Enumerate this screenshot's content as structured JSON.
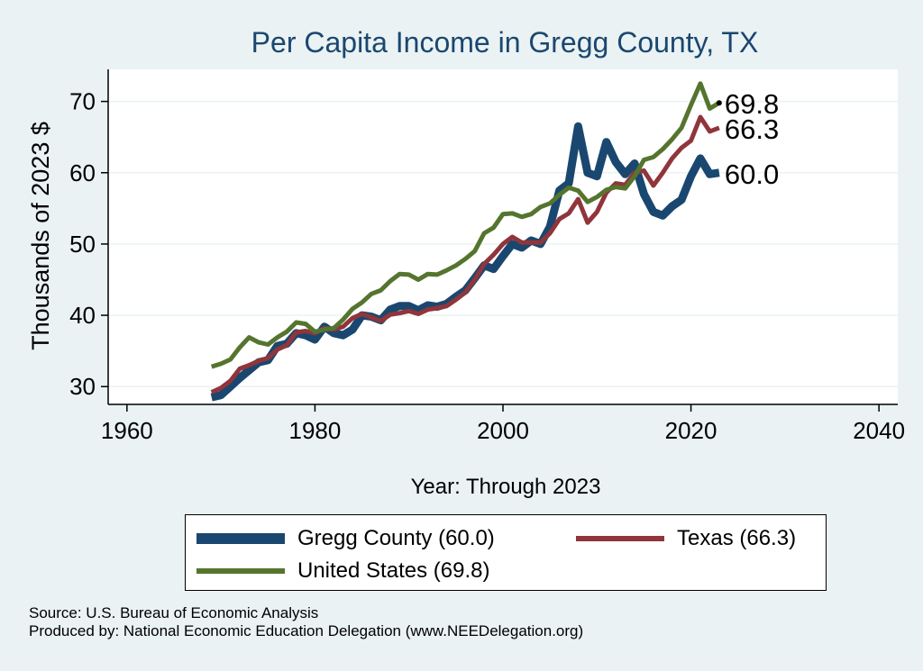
{
  "chart_data": {
    "type": "line",
    "title": "Per Capita Income in Gregg County, TX",
    "xlabel": "Year: Through 2023",
    "ylabel": "Thousands of 2023 $",
    "xlim": [
      1958,
      2042
    ],
    "ylim": [
      27.5,
      74.5
    ],
    "xticks": [
      1960,
      1980,
      2000,
      2020,
      2040
    ],
    "yticks": [
      30,
      40,
      50,
      60,
      70
    ],
    "grid": true,
    "legend_position": "bottom",
    "x": [
      1969,
      1970,
      1971,
      1972,
      1973,
      1974,
      1975,
      1976,
      1977,
      1978,
      1979,
      1980,
      1981,
      1982,
      1983,
      1984,
      1985,
      1986,
      1987,
      1988,
      1989,
      1990,
      1991,
      1992,
      1993,
      1994,
      1995,
      1996,
      1997,
      1998,
      1999,
      2000,
      2001,
      2002,
      2003,
      2004,
      2005,
      2006,
      2007,
      2008,
      2009,
      2010,
      2011,
      2012,
      2013,
      2014,
      2015,
      2016,
      2017,
      2018,
      2019,
      2020,
      2021,
      2022,
      2023
    ],
    "series": [
      {
        "name": "Gregg County",
        "legend_label": "Gregg County (60.0)",
        "end_label": "60.0",
        "color": "#1a476f",
        "values": [
          28.5,
          28.8,
          30.0,
          31.2,
          32.3,
          33.4,
          33.7,
          35.7,
          36.0,
          37.5,
          37.2,
          36.6,
          38.4,
          37.5,
          37.2,
          38.0,
          40.0,
          39.8,
          39.3,
          40.8,
          41.3,
          41.3,
          40.7,
          41.4,
          41.2,
          41.6,
          42.6,
          43.5,
          45.2,
          47.0,
          46.5,
          48.3,
          50.0,
          49.5,
          50.5,
          50.0,
          52.4,
          57.5,
          58.5,
          66.5,
          60.0,
          59.5,
          64.3,
          61.5,
          59.8,
          61.3,
          57.0,
          54.5,
          54.0,
          55.3,
          56.2,
          59.5,
          62.0,
          59.8,
          60.0
        ]
      },
      {
        "name": "Texas",
        "legend_label": "Texas (66.3)",
        "end_label": "66.3",
        "color": "#90353b",
        "values": [
          29.2,
          29.8,
          30.8,
          32.5,
          33.0,
          33.6,
          34.0,
          35.2,
          35.8,
          37.6,
          37.8,
          37.5,
          38.2,
          38.0,
          38.4,
          39.6,
          40.2,
          39.7,
          39.2,
          40.1,
          40.3,
          40.6,
          40.2,
          40.8,
          41.0,
          41.3,
          42.2,
          43.2,
          45.0,
          47.2,
          48.5,
          50.0,
          51.0,
          50.2,
          50.2,
          50.2,
          51.5,
          53.5,
          54.3,
          56.3,
          53.0,
          54.5,
          57.2,
          58.5,
          58.3,
          60.0,
          60.3,
          58.2,
          60.0,
          62.0,
          63.5,
          64.5,
          67.8,
          65.8,
          66.3
        ]
      },
      {
        "name": "United States",
        "legend_label": "United States (69.8)",
        "end_label": "69.8",
        "color": "#55752f",
        "values": [
          32.8,
          33.2,
          33.8,
          35.5,
          36.9,
          36.2,
          35.9,
          36.9,
          37.7,
          39.0,
          38.8,
          37.7,
          38.0,
          38.2,
          39.4,
          40.9,
          41.8,
          43.0,
          43.5,
          44.8,
          45.8,
          45.7,
          45.0,
          45.8,
          45.7,
          46.3,
          47.0,
          47.9,
          49.0,
          51.5,
          52.3,
          54.2,
          54.3,
          53.8,
          54.2,
          55.2,
          55.7,
          56.9,
          57.9,
          57.5,
          55.9,
          56.6,
          57.6,
          58.0,
          57.8,
          59.5,
          61.8,
          62.2,
          63.3,
          64.7,
          66.3,
          69.5,
          72.5,
          69.0,
          69.8
        ]
      }
    ]
  },
  "footer": {
    "source": "Source: U.S. Bureau of Economic Analysis",
    "produced_by": "Produced by: National Economic Education Delegation (www.NEEDelegation.org)"
  },
  "colors": {
    "page_background": "#eaf2f3",
    "plot_background": "#ffffff",
    "gridline": "#eaf2f3",
    "title": "#1a476f"
  }
}
